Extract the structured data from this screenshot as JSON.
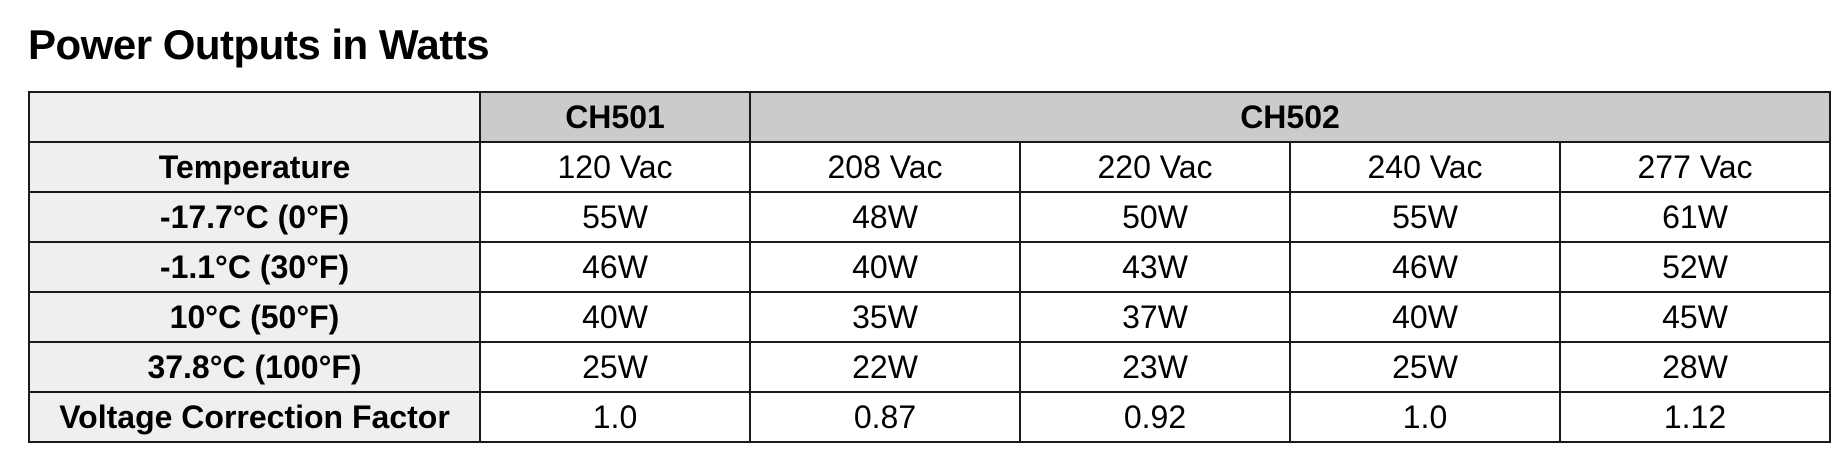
{
  "title": "Power Outputs in Watts",
  "table": {
    "groups": [
      {
        "label": "CH501",
        "span": 1
      },
      {
        "label": "CH502",
        "span": 4
      }
    ],
    "stub_header": "Temperature",
    "voltages": [
      "120 Vac",
      "208 Vac",
      "220 Vac",
      "240 Vac",
      "277 Vac"
    ],
    "rows": [
      {
        "label": "-17.7°C (0°F)",
        "values": [
          "55W",
          "48W",
          "50W",
          "55W",
          "61W"
        ]
      },
      {
        "label": "-1.1°C (30°F)",
        "values": [
          "46W",
          "40W",
          "43W",
          "46W",
          "52W"
        ]
      },
      {
        "label": "10°C (50°F)",
        "values": [
          "40W",
          "35W",
          "37W",
          "40W",
          "45W"
        ]
      },
      {
        "label": "37.8°C (100°F)",
        "values": [
          "25W",
          "22W",
          "23W",
          "25W",
          "28W"
        ]
      },
      {
        "label": "Voltage Correction Factor",
        "values": [
          "1.0",
          "0.87",
          "0.92",
          "1.0",
          "1.12"
        ]
      }
    ]
  },
  "colors": {
    "header_group_bg": "#cbcbcd",
    "stub_bg": "#efefef",
    "border": "#1a1a1a"
  }
}
